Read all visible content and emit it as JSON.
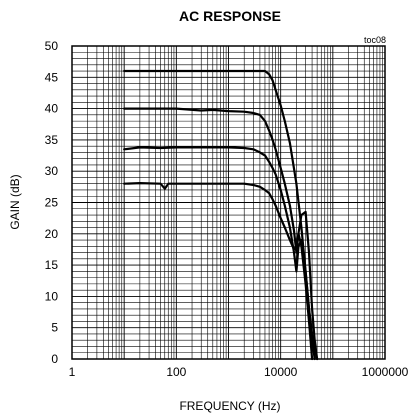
{
  "chart_data": {
    "type": "line",
    "title": "AC RESPONSE",
    "annotation": "toc08",
    "xlabel": "FREQUENCY (Hz)",
    "ylabel": "GAIN (dB)",
    "x_scale": "log",
    "xlim": [
      1,
      1000000
    ],
    "ylim": [
      0,
      50
    ],
    "x_ticks": [
      {
        "value": 1,
        "label": "1"
      },
      {
        "value": 100,
        "label": "100"
      },
      {
        "value": 10000,
        "label": "10000"
      },
      {
        "value": 1000000,
        "label": "1000000"
      }
    ],
    "y_ticks": [
      0,
      5,
      10,
      15,
      20,
      25,
      30,
      35,
      40,
      45,
      50
    ],
    "grid": true,
    "series": [
      {
        "x": [
          10,
          100,
          1000,
          4000,
          5000,
          6000,
          7000,
          8000,
          10000,
          12000,
          15000,
          20000,
          25000,
          30000,
          35000,
          40000,
          45000,
          50000
        ],
        "y": [
          46,
          46,
          46,
          46,
          46,
          45.5,
          44.5,
          43,
          40.5,
          38,
          34.5,
          28,
          21,
          14,
          8,
          4,
          1.5,
          0
        ]
      },
      {
        "x": [
          10,
          100,
          300,
          500,
          1000,
          2000,
          3000,
          4000,
          5000,
          6000,
          7000,
          8000,
          10000,
          12000,
          15000,
          18000,
          20000,
          22000,
          25000,
          30000,
          35000,
          40000
        ],
        "y": [
          40,
          40,
          39.7,
          39.8,
          39.6,
          39.5,
          39.3,
          39,
          38,
          36.5,
          35,
          33.5,
          30.5,
          28,
          24.5,
          20.5,
          17,
          20,
          18,
          12,
          6,
          0
        ]
      },
      {
        "x": [
          10,
          20,
          50,
          100,
          300,
          1000,
          2000,
          3000,
          4000,
          5000,
          6000,
          7000,
          8000,
          10000,
          12000,
          15000,
          18000,
          20000,
          22000,
          25000,
          30000,
          35000,
          40000,
          45000
        ],
        "y": [
          33.5,
          33.8,
          33.7,
          33.8,
          33.8,
          33.8,
          33.7,
          33.5,
          33,
          32.5,
          31.5,
          30.5,
          29.5,
          27,
          24.5,
          21,
          17,
          14,
          18,
          19,
          14,
          8,
          3,
          0
        ]
      },
      {
        "x": [
          10,
          20,
          50,
          60,
          70,
          100,
          300,
          1000,
          2000,
          3000,
          4000,
          5000,
          6000,
          7000,
          8000,
          10000,
          12000,
          15000,
          18000,
          20000,
          25000,
          30000,
          35000,
          40000,
          45000,
          50000
        ],
        "y": [
          28,
          28.1,
          28,
          27.2,
          28,
          28,
          28,
          28,
          28,
          27.8,
          27.5,
          27,
          26.5,
          25.5,
          24.5,
          22.5,
          21,
          19,
          17.5,
          18,
          23,
          23.5,
          17,
          8,
          3,
          0
        ]
      }
    ]
  }
}
